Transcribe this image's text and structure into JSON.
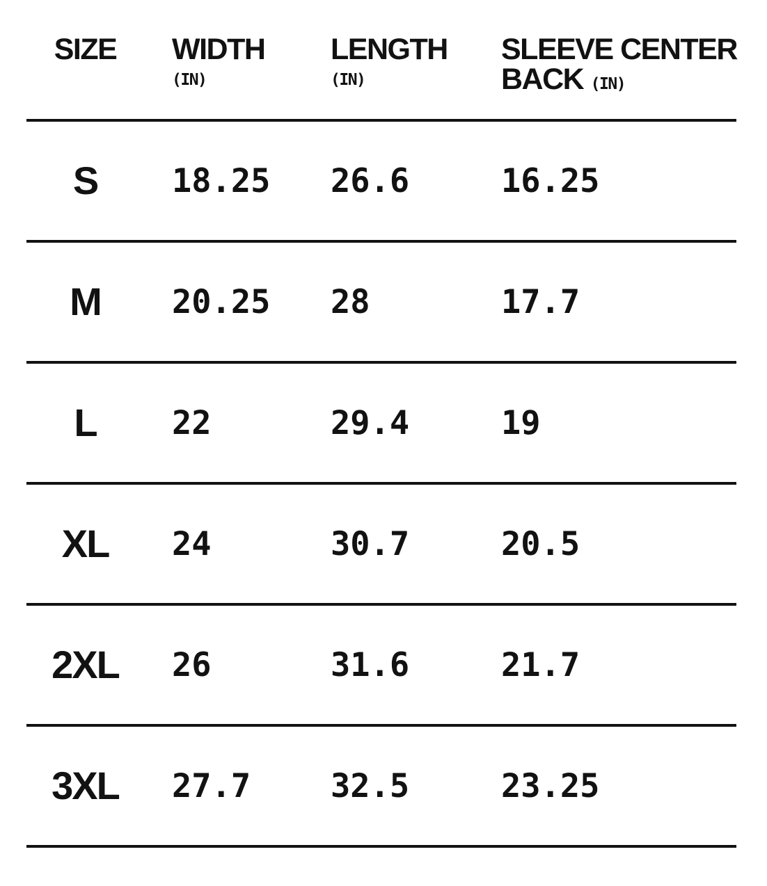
{
  "table": {
    "colors": {
      "text": "#121212",
      "background": "#ffffff",
      "rule": "#121212"
    },
    "columns": [
      {
        "label": "SIZE"
      },
      {
        "label": "WIDTH",
        "unit": "(IN)"
      },
      {
        "label": "LENGTH",
        "unit": "(IN)"
      },
      {
        "line1": "SLEEVE CENTER",
        "line2": "BACK",
        "unit": "(IN)"
      }
    ],
    "rows": [
      {
        "size": "S",
        "width": "18.25",
        "length": "26.6",
        "sleeve": "16.25"
      },
      {
        "size": "M",
        "width": "20.25",
        "length": "28",
        "sleeve": "17.7"
      },
      {
        "size": "L",
        "width": "22",
        "length": "29.4",
        "sleeve": "19"
      },
      {
        "size": "XL",
        "width": "24",
        "length": "30.7",
        "sleeve": "20.5"
      },
      {
        "size": "2XL",
        "width": "26",
        "length": "31.6",
        "sleeve": "21.7"
      },
      {
        "size": "3XL",
        "width": "27.7",
        "length": "32.5",
        "sleeve": "23.25"
      }
    ]
  }
}
